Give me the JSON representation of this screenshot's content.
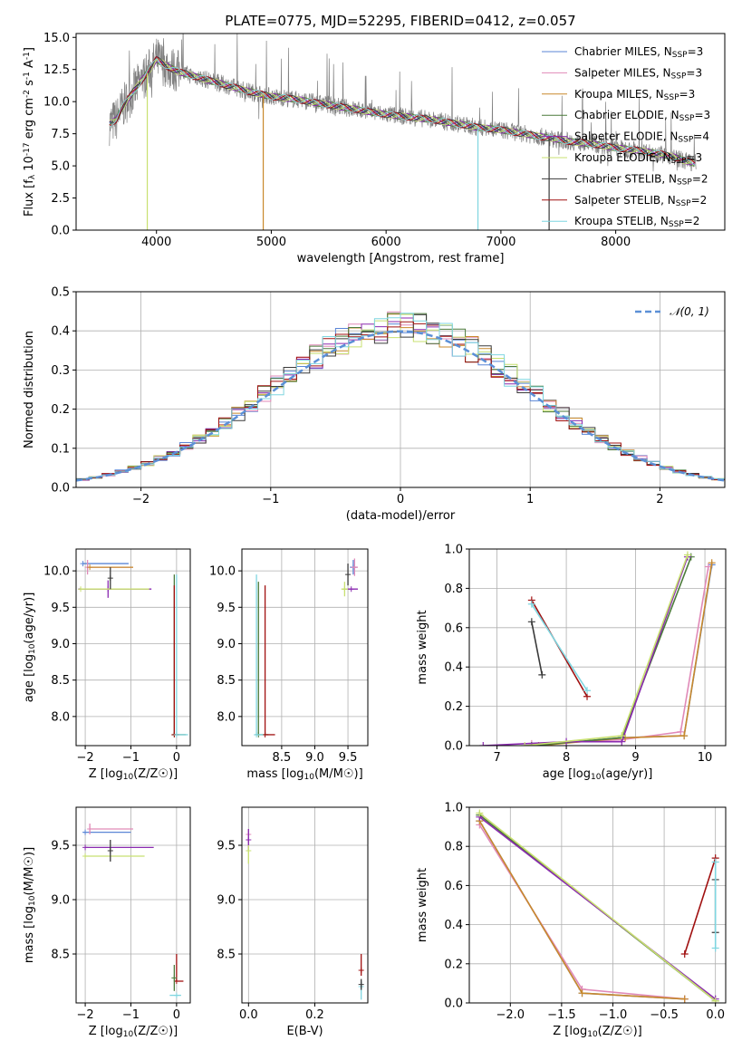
{
  "colors": {
    "chabrier_miles": "#5b86d6",
    "salpeter_miles": "#e08ab8",
    "kroupa_miles": "#c9892b",
    "chabrier_elodie": "#4b7a3a",
    "salpeter_elodie": "#8a2ab0",
    "kroupa_elodie": "#c8e070",
    "chabrier_stelib": "#3a3a3a",
    "salpeter_stelib": "#a01010",
    "kroupa_stelib": "#7fd6e0",
    "data": "#808080",
    "normal": "#5b8fd6"
  },
  "series_names": [
    "Chabrier MILES, N_SSP=3",
    "Salpeter MILES, N_SSP=3",
    "Kroupa MILES, N_SSP=3",
    "Chabrier ELODIE, N_SSP=3",
    "Salpeter ELODIE, N_SSP=4",
    "Kroupa ELODIE, N_SSP=3",
    "Chabrier STELIB, N_SSP=2",
    "Salpeter STELIB, N_SSP=2",
    "Kroupa STELIB, N_SSP=2"
  ],
  "chart_data": [
    {
      "id": "spectrum",
      "type": "line",
      "title": "PLATE=0775, MJD=52295, FIBERID=0412, z=0.057",
      "xlabel": "wavelength [Angstrom, rest frame]",
      "ylabel": "Flux [f_λ 10^-17 erg cm^-2 s^-1 A^-1]",
      "xlim": [
        3300,
        8950
      ],
      "ylim": [
        0,
        15.3
      ],
      "xticks": [
        "4000",
        "5000",
        "6000",
        "7000",
        "8000"
      ],
      "yticks": [
        "0.0",
        "2.5",
        "5.0",
        "7.5",
        "10.0",
        "12.5",
        "15.0"
      ],
      "grid": false,
      "legend": "top-right",
      "continuum": {
        "x": [
          3600,
          3650,
          3700,
          3800,
          3900,
          3950,
          4000,
          4100,
          4200,
          4400,
          4600,
          4800,
          5000,
          5200,
          5400,
          5600,
          5800,
          6000,
          6200,
          6400,
          6600,
          6800,
          7000,
          7200,
          7400,
          7600,
          7800,
          8000,
          8200,
          8400,
          8500,
          8600,
          8700
        ],
        "y": [
          8.3,
          8.6,
          9.5,
          10.8,
          12.0,
          12.6,
          13.3,
          12.7,
          12.3,
          11.8,
          11.3,
          10.8,
          10.4,
          10.2,
          9.9,
          9.6,
          9.3,
          9.0,
          8.8,
          8.6,
          8.3,
          8.0,
          7.8,
          7.5,
          7.2,
          6.9,
          6.7,
          6.4,
          6.2,
          5.9,
          5.7,
          5.4,
          5.2
        ]
      }
    },
    {
      "id": "residuals",
      "type": "line",
      "xlabel": "(data-model)/error",
      "ylabel": "Normed distribution",
      "xlim": [
        -2.5,
        2.5
      ],
      "ylim": [
        0,
        0.5
      ],
      "xticks": [
        "−2",
        "−1",
        "0",
        "1",
        "2"
      ],
      "yticks": [
        "0.0",
        "0.1",
        "0.2",
        "0.3",
        "0.4",
        "0.5"
      ],
      "grid": true,
      "legend": "top-right",
      "legend_label": "𝒩(0, 1)"
    },
    {
      "id": "age_vs_z",
      "type": "scatter",
      "xlabel": "Z [log10(Z/Z☉)]",
      "ylabel": "age [log10(age/yr)]",
      "xlim": [
        -2.2,
        0.3
      ],
      "ylim": [
        7.6,
        10.3
      ],
      "xticks": [
        "−2",
        "−1",
        "0"
      ],
      "yticks": [
        "8.0",
        "8.5",
        "9.0",
        "9.5",
        "10.0"
      ],
      "grid": true,
      "points": [
        {
          "s": 0,
          "x": -2.05,
          "y": 10.1,
          "xe": [
            0,
            1.0
          ],
          "ye": [
            0,
            0
          ]
        },
        {
          "s": 1,
          "x": -1.95,
          "y": 10.05,
          "xe": [
            0,
            1.0
          ],
          "ye": [
            0.1,
            0.1
          ]
        },
        {
          "s": 2,
          "x": -1.9,
          "y": 10.05,
          "xe": [
            0,
            0.95
          ],
          "ye": [
            0,
            0
          ]
        },
        {
          "s": 4,
          "x": -1.5,
          "y": 9.75,
          "xe": [
            0.65,
            0.95
          ],
          "ye": [
            0.12,
            0.12
          ]
        },
        {
          "s": 5,
          "x": -2.1,
          "y": 9.75,
          "xe": [
            0,
            1.5
          ],
          "ye": [
            0,
            0
          ]
        },
        {
          "s": 6,
          "x": -1.45,
          "y": 9.9,
          "xe": [
            0,
            0
          ],
          "ye": [
            0.15,
            0.15
          ]
        },
        {
          "s": 3,
          "x": -0.05,
          "y": 7.75,
          "xe": [
            0.05,
            0.25
          ],
          "ye": [
            0,
            2.2
          ]
        },
        {
          "s": 7,
          "x": -0.05,
          "y": 7.75,
          "xe": [
            0,
            0.1
          ],
          "ye": [
            0,
            2.05
          ]
        },
        {
          "s": 8,
          "x": 0.0,
          "y": 7.75,
          "xe": [
            0,
            0.25
          ],
          "ye": [
            0,
            2.2
          ]
        }
      ]
    },
    {
      "id": "age_vs_mass",
      "type": "scatter",
      "xlabel": "mass [log10(M/M☉)]",
      "ylabel": "",
      "xlim": [
        7.9,
        9.8
      ],
      "ylim": [
        7.6,
        10.3
      ],
      "xticks": [
        "8.5",
        "9.0",
        "9.5"
      ],
      "yticks": [
        "8.0",
        "8.5",
        "9.0",
        "9.5",
        "10.0"
      ],
      "grid": true,
      "points": [
        {
          "s": 0,
          "x": 9.58,
          "y": 10.05,
          "xe": [
            0.05,
            0.05
          ],
          "ye": [
            0.1,
            0.1
          ]
        },
        {
          "s": 1,
          "x": 9.6,
          "y": 10.05,
          "xe": [
            0.05,
            0.05
          ],
          "ye": [
            0.12,
            0.12
          ]
        },
        {
          "s": 4,
          "x": 9.55,
          "y": 9.75,
          "xe": [
            0.12,
            0.1
          ],
          "ye": [
            0,
            0
          ]
        },
        {
          "s": 5,
          "x": 9.45,
          "y": 9.75,
          "xe": [
            0.05,
            0.05
          ],
          "ye": [
            0.1,
            0.1
          ]
        },
        {
          "s": 6,
          "x": 9.5,
          "y": 9.95,
          "xe": [
            0,
            0
          ],
          "ye": [
            0.15,
            0.15
          ]
        },
        {
          "s": 3,
          "x": 8.15,
          "y": 7.75,
          "xe": [
            0.05,
            0.15
          ],
          "ye": [
            0,
            2.1
          ]
        },
        {
          "s": 7,
          "x": 8.25,
          "y": 7.75,
          "xe": [
            0,
            0.15
          ],
          "ye": [
            0,
            2.05
          ]
        },
        {
          "s": 8,
          "x": 8.12,
          "y": 7.75,
          "xe": [
            0,
            0.1
          ],
          "ye": [
            0,
            2.2
          ]
        }
      ]
    },
    {
      "id": "weight_vs_age",
      "type": "line",
      "xlabel": "age [log10(age/yr)]",
      "ylabel": "mass weight",
      "xlim": [
        6.6,
        10.3
      ],
      "ylim": [
        0,
        1.0
      ],
      "xticks": [
        "7",
        "8",
        "9",
        "10"
      ],
      "yticks": [
        "0.0",
        "0.2",
        "0.4",
        "0.6",
        "0.8",
        "1.0"
      ],
      "grid": true,
      "series": [
        {
          "s": 0,
          "x": [
            7.5,
            8.8,
            9.7,
            10.1
          ],
          "y": [
            0.0,
            0.04,
            0.05,
            0.92
          ]
        },
        {
          "s": 1,
          "x": [
            7.5,
            8.8,
            9.65,
            10.05
          ],
          "y": [
            0.01,
            0.03,
            0.07,
            0.91
          ]
        },
        {
          "s": 2,
          "x": [
            7.6,
            8.85,
            9.7,
            10.1
          ],
          "y": [
            0.0,
            0.04,
            0.05,
            0.93
          ]
        },
        {
          "s": 3,
          "x": [
            7.5,
            8.8,
            9.8
          ],
          "y": [
            0.0,
            0.04,
            0.96
          ]
        },
        {
          "s": 4,
          "x": [
            6.8,
            8.0,
            8.8,
            9.75
          ],
          "y": [
            0.0,
            0.02,
            0.02,
            0.96
          ]
        },
        {
          "s": 5,
          "x": [
            7.4,
            8.8,
            9.75
          ],
          "y": [
            0.0,
            0.05,
            0.97
          ]
        },
        {
          "s": 6,
          "x": [
            7.5,
            7.65
          ],
          "y": [
            0.63,
            0.36
          ]
        },
        {
          "s": 7,
          "x": [
            7.5,
            8.3
          ],
          "y": [
            0.74,
            0.25
          ]
        },
        {
          "s": 8,
          "x": [
            7.5,
            8.3
          ],
          "y": [
            0.72,
            0.28
          ]
        }
      ]
    },
    {
      "id": "mass_vs_z",
      "type": "scatter",
      "xlabel": "Z [log10(Z/Z☉)]",
      "ylabel": "mass [log10(M/M☉)]",
      "xlim": [
        -2.2,
        0.3
      ],
      "ylim": [
        8.05,
        9.85
      ],
      "xticks": [
        "−2",
        "−1",
        "0"
      ],
      "yticks": [
        "8.5",
        "9.0",
        "9.5"
      ],
      "grid": true,
      "points": [
        {
          "s": 0,
          "x": -2.0,
          "y": 9.62,
          "xe": [
            0.05,
            1.0
          ],
          "ye": [
            0,
            0
          ]
        },
        {
          "s": 1,
          "x": -1.9,
          "y": 9.65,
          "xe": [
            0,
            0.95
          ],
          "ye": [
            0.05,
            0.05
          ]
        },
        {
          "s": 4,
          "x": -2.0,
          "y": 9.48,
          "xe": [
            0,
            1.5
          ],
          "ye": [
            0,
            0
          ]
        },
        {
          "s": 5,
          "x": -2.0,
          "y": 9.4,
          "xe": [
            0,
            1.3
          ],
          "ye": [
            0,
            0
          ]
        },
        {
          "s": 6,
          "x": -1.45,
          "y": 9.45,
          "xe": [
            0,
            0
          ],
          "ye": [
            0.1,
            0.1
          ]
        },
        {
          "s": 7,
          "x": 0.0,
          "y": 8.25,
          "xe": [
            0.05,
            0.15
          ],
          "ye": [
            0,
            0.25
          ]
        },
        {
          "s": 8,
          "x": 0.0,
          "y": 8.12,
          "xe": [
            0.15,
            0.1
          ],
          "ye": [
            0,
            0
          ]
        },
        {
          "s": 3,
          "x": -0.05,
          "y": 8.28,
          "xe": [
            0,
            0
          ],
          "ye": [
            0.12,
            0.12
          ]
        }
      ]
    },
    {
      "id": "mass_vs_ebv",
      "type": "scatter",
      "xlabel": "E(B-V)",
      "ylabel": "",
      "xlim": [
        -0.02,
        0.36
      ],
      "ylim": [
        8.05,
        9.85
      ],
      "xticks": [
        "0.0",
        "0.2"
      ],
      "yticks": [
        "8.5",
        "9.0",
        "9.5"
      ],
      "grid": true,
      "points": [
        {
          "s": 1,
          "x": 0.0,
          "y": 9.6,
          "xe": [
            0,
            0
          ],
          "ye": [
            0.1,
            0.05
          ]
        },
        {
          "s": 4,
          "x": 0.0,
          "y": 9.55,
          "xe": [
            0,
            0
          ],
          "ye": [
            0.1,
            0.1
          ]
        },
        {
          "s": 5,
          "x": 0.0,
          "y": 9.45,
          "xe": [
            0,
            0
          ],
          "ye": [
            0.12,
            0.05
          ]
        },
        {
          "s": 7,
          "x": 0.34,
          "y": 8.35,
          "xe": [
            0,
            0
          ],
          "ye": [
            0.05,
            0.15
          ]
        },
        {
          "s": 8,
          "x": 0.34,
          "y": 8.2,
          "xe": [
            0,
            0
          ],
          "ye": [
            0.12,
            0.05
          ]
        },
        {
          "s": 6,
          "x": 0.34,
          "y": 8.22,
          "xe": [
            0,
            0
          ],
          "ye": [
            0.05,
            0.05
          ]
        }
      ]
    },
    {
      "id": "weight_vs_z",
      "type": "line",
      "xlabel": "Z [log10(Z/Z☉)]",
      "ylabel": "mass weight",
      "xlim": [
        -2.4,
        0.1
      ],
      "ylim": [
        0,
        1.0
      ],
      "xticks": [
        "−2.0",
        "−1.5",
        "−1.0",
        "−0.5",
        "0.0"
      ],
      "yticks": [
        "0.0",
        "0.2",
        "0.4",
        "0.6",
        "0.8",
        "1.0"
      ],
      "grid": true,
      "series": [
        {
          "s": 0,
          "x": [
            -2.3,
            -1.3,
            -0.3
          ],
          "y": [
            0.93,
            0.05,
            0.02
          ]
        },
        {
          "s": 1,
          "x": [
            -2.3,
            -1.3,
            -0.3
          ],
          "y": [
            0.91,
            0.07,
            0.02
          ]
        },
        {
          "s": 2,
          "x": [
            -2.3,
            -1.3,
            -0.3
          ],
          "y": [
            0.93,
            0.05,
            0.02
          ]
        },
        {
          "s": 3,
          "x": [
            -2.3,
            0.0
          ],
          "y": [
            0.96,
            0.01
          ]
        },
        {
          "s": 4,
          "x": [
            -2.3,
            0.0
          ],
          "y": [
            0.95,
            0.02
          ]
        },
        {
          "s": 5,
          "x": [
            -2.3,
            0.0
          ],
          "y": [
            0.97,
            0.01
          ]
        },
        {
          "s": 6,
          "x": [
            0.0,
            0.0
          ],
          "y": [
            0.63,
            0.36
          ]
        },
        {
          "s": 7,
          "x": [
            -0.3,
            0.0
          ],
          "y": [
            0.25,
            0.74
          ]
        },
        {
          "s": 8,
          "x": [
            0.0,
            0.0
          ],
          "y": [
            0.72,
            0.28
          ]
        }
      ]
    }
  ]
}
